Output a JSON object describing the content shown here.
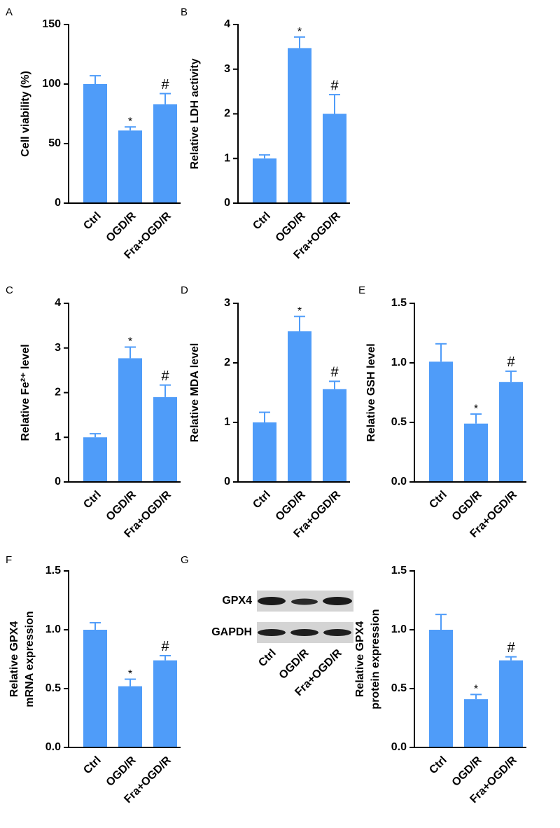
{
  "panel_labels": [
    "A",
    "B",
    "C",
    "D",
    "E",
    "F",
    "G"
  ],
  "blot": {
    "rows": [
      "GPX4",
      "GAPDH"
    ],
    "categories": [
      "Ctrl",
      "OGD/R",
      "Fra+OGD/R"
    ]
  },
  "chart_data": [
    {
      "type": "bar",
      "ylabel": [
        "Cell viability (%)"
      ],
      "categories": [
        "Ctrl",
        "OGD/R",
        "Fra+OGD/R"
      ],
      "values": [
        100,
        61,
        83
      ],
      "errors": [
        7,
        3,
        9
      ],
      "markers": [
        null,
        "*",
        "#"
      ],
      "color": "#4f9cf9",
      "ylim": [
        0,
        150
      ],
      "yticks": [
        0,
        50,
        100,
        150
      ]
    },
    {
      "type": "bar",
      "ylabel": [
        "Relative LDH activity"
      ],
      "categories": [
        "Ctrl",
        "OGD/R",
        "Fra+OGD/R"
      ],
      "values": [
        1.0,
        3.47,
        2.0
      ],
      "errors": [
        0.08,
        0.25,
        0.43
      ],
      "markers": [
        null,
        "*",
        "#"
      ],
      "color": "#4f9cf9",
      "ylim": [
        0,
        4
      ],
      "yticks": [
        0,
        1,
        2,
        3,
        4
      ]
    },
    {
      "type": "bar",
      "ylabel": [
        "Relative Fe²⁺ level"
      ],
      "categories": [
        "Ctrl",
        "OGD/R",
        "Fra+OGD/R"
      ],
      "values": [
        1.0,
        2.77,
        1.9
      ],
      "errors": [
        0.08,
        0.25,
        0.27
      ],
      "markers": [
        null,
        "*",
        "#"
      ],
      "color": "#4f9cf9",
      "ylim": [
        0,
        4
      ],
      "yticks": [
        0,
        1,
        2,
        3,
        4
      ]
    },
    {
      "type": "bar",
      "ylabel": [
        "Relative MDA level"
      ],
      "categories": [
        "Ctrl",
        "OGD/R",
        "Fra+OGD/R"
      ],
      "values": [
        1.0,
        2.53,
        1.56
      ],
      "errors": [
        0.17,
        0.25,
        0.13
      ],
      "markers": [
        null,
        "*",
        "#"
      ],
      "color": "#4f9cf9",
      "ylim": [
        0,
        3
      ],
      "yticks": [
        0,
        1,
        2,
        3
      ]
    },
    {
      "type": "bar",
      "ylabel": [
        "Relative GSH level"
      ],
      "categories": [
        "Ctrl",
        "OGD/R",
        "Fra+OGD/R"
      ],
      "values": [
        1.01,
        0.49,
        0.84
      ],
      "errors": [
        0.15,
        0.08,
        0.09
      ],
      "markers": [
        null,
        "*",
        "#"
      ],
      "color": "#4f9cf9",
      "ylim": [
        0,
        1.5
      ],
      "yticks": [
        {
          "value": 0,
          "label": "0.0"
        },
        0.5,
        {
          "value": 1,
          "label": "1.0"
        },
        1.5
      ]
    },
    {
      "type": "bar",
      "ylabel": [
        "Relative GPX4",
        "mRNA expression"
      ],
      "categories": [
        "Ctrl",
        "OGD/R",
        "Fra+OGD/R"
      ],
      "values": [
        1.0,
        0.52,
        0.74
      ],
      "errors": [
        0.06,
        0.06,
        0.04
      ],
      "markers": [
        null,
        "*",
        "#"
      ],
      "color": "#4f9cf9",
      "ylim": [
        0,
        1.5
      ],
      "yticks": [
        {
          "value": 0,
          "label": "0.0"
        },
        0.5,
        {
          "value": 1,
          "label": "1.0"
        },
        1.5
      ]
    },
    {
      "type": "bar",
      "ylabel": [
        "Relative GPX4",
        "protein expression"
      ],
      "categories": [
        "Ctrl",
        "OGD/R",
        "Fra+OGD/R"
      ],
      "values": [
        1.0,
        0.41,
        0.74
      ],
      "errors": [
        0.13,
        0.04,
        0.03
      ],
      "markers": [
        null,
        "*",
        "#"
      ],
      "color": "#4f9cf9",
      "ylim": [
        0,
        1.5
      ],
      "yticks": [
        {
          "value": 0,
          "label": "0.0"
        },
        0.5,
        {
          "value": 1,
          "label": "1.0"
        },
        1.5
      ]
    }
  ]
}
